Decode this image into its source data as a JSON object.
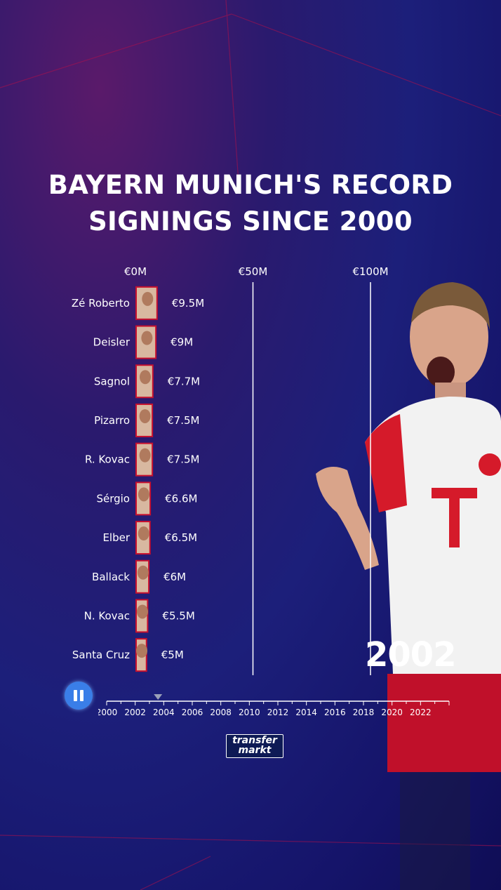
{
  "title_lines": [
    "BAYERN MUNICH'S RECORD",
    "SIGNINGS SINCE 2000"
  ],
  "current_year": "2002",
  "logo": {
    "line1": "transfer",
    "line2": "markt"
  },
  "playback": {
    "state": "playing",
    "control": "pause-icon"
  },
  "colors": {
    "bar": "#c8102e",
    "background": "#1c1f7a",
    "gridline": "#ffffff",
    "play_button": "#3a7ee8"
  },
  "chart_data": {
    "type": "bar",
    "orientation": "horizontal",
    "title": "BAYERN MUNICH'S RECORD SIGNINGS SINCE 2000",
    "unit": "€M",
    "xlim": [
      0,
      100
    ],
    "axis_ticks": [
      0,
      50,
      100
    ],
    "axis_tick_labels": [
      "€0M",
      "€50M",
      "€100M"
    ],
    "grid": true,
    "categories": [
      "Zé Roberto",
      "Deisler",
      "Sagnol",
      "Pizarro",
      "R. Kovac",
      "Sérgio",
      "Elber",
      "Ballack",
      "N. Kovac",
      "Santa Cruz"
    ],
    "values": [
      9.5,
      9,
      7.7,
      7.5,
      7.5,
      6.6,
      6.5,
      6,
      5.5,
      5
    ],
    "value_labels": [
      "€9.5M",
      "€9M",
      "€7.7M",
      "€7.5M",
      "€7.5M",
      "€6.6M",
      "€6.5M",
      "€6M",
      "€5.5M",
      "€5M"
    ],
    "timeline": {
      "ticks": [
        "2000",
        "2002",
        "2004",
        "2006",
        "2008",
        "2010",
        "2012",
        "2014",
        "2016",
        "2018",
        "2020",
        "2022"
      ],
      "start": 2000,
      "end": 2024,
      "current": 2003.6
    }
  }
}
